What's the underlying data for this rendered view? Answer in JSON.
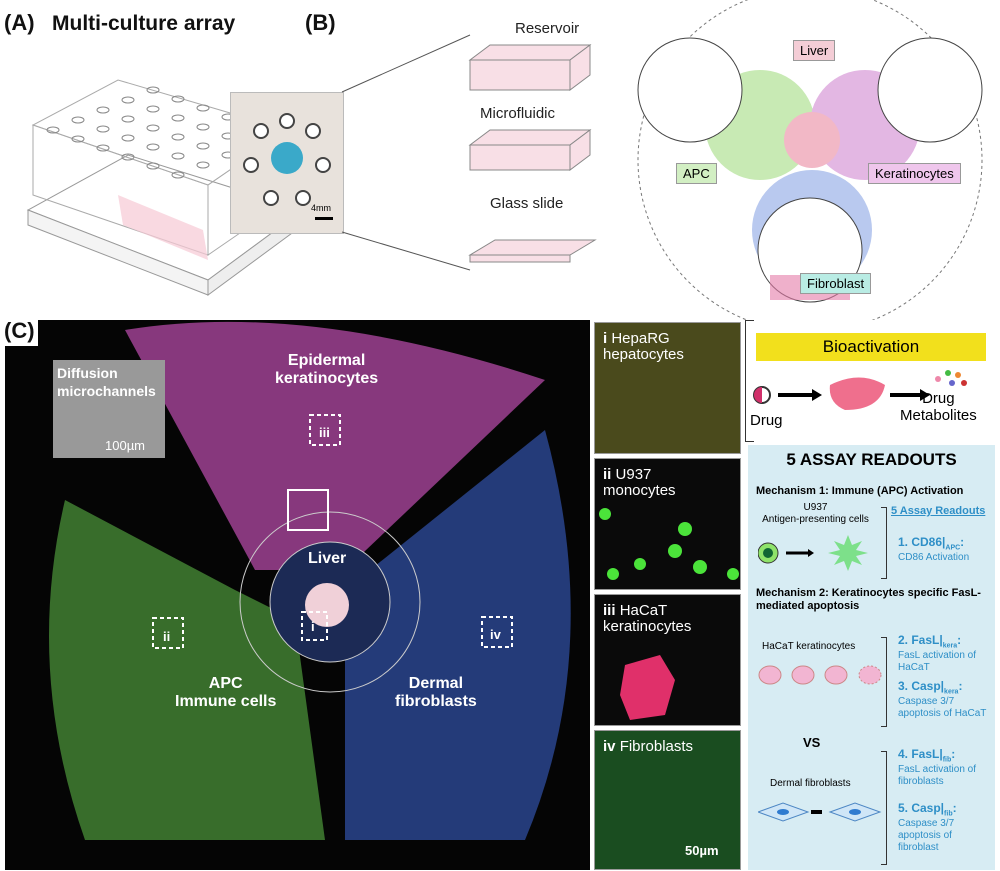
{
  "panelA": {
    "label": "(A)",
    "title": "Multi-culture array"
  },
  "panelB": {
    "label": "(B)",
    "scale": "4mm",
    "layers": [
      "Reservoir",
      "Microfluidic",
      "Glass slide"
    ],
    "tissues": {
      "liver": "Liver",
      "apc": "APC",
      "keratinocytes": "Keratinocytes",
      "fibroblast": "Fibroblast"
    }
  },
  "panelC": {
    "label": "(C)",
    "micrograph": {
      "inset_title": "Diffusion\nmicrochannels",
      "inset_scale": "100µm",
      "epidermal": "Epidermal\nkeratinocytes",
      "liver": "Liver",
      "apc": "APC\nImmune cells",
      "dermal": "Dermal\nfibroblasts",
      "markers": [
        "i",
        "ii",
        "iii",
        "iv"
      ]
    },
    "insets": [
      {
        "num": "i",
        "text": "HepaRG\nhepatocytes"
      },
      {
        "num": "ii",
        "text": "U937\nmonocytes"
      },
      {
        "num": "iii",
        "text": "HaCaT\nkeratinocytes"
      },
      {
        "num": "iv",
        "text": "Fibroblasts",
        "scale": "50µm"
      }
    ]
  },
  "bioactivation": {
    "title": "Bioactivation",
    "drug": "Drug",
    "metabolites": "Drug\nMetabolites"
  },
  "readouts": {
    "title": "5 ASSAY READOUTS",
    "mech1": "Mechanism 1: Immune (APC) Activation",
    "u937": "U937\nAntigen-presenting cells",
    "link": "5 Assay Readouts",
    "mech2": "Mechanism 2: Keratinocytes specific FasL-mediated apoptosis",
    "hacat": "HaCaT keratinocytes",
    "vs": "VS",
    "dermal": "Dermal fibroblasts",
    "items": [
      {
        "name": "1. CD86|",
        "sub": "APC",
        "desc": "CD86 Activation"
      },
      {
        "name": "2. FasL|",
        "sub": "kera",
        "desc": "FasL activation of HaCaT"
      },
      {
        "name": "3. Casp|",
        "sub": "kera",
        "desc": "Caspase 3/7 apoptosis of HaCaT"
      },
      {
        "name": "4. FasL|",
        "sub": "fib",
        "desc": "FasL activation of fibroblasts"
      },
      {
        "name": "5. Casp|",
        "sub": "fib",
        "desc": "Caspase 3/7 apoptosis of fibroblast"
      }
    ]
  },
  "colors": {
    "apc": "#8fd16a",
    "kera": "#e69ad8",
    "liver": "#f2b8c6",
    "fib": "#9db6e6",
    "yellow": "#f2e01c",
    "box": "#d7ecf3",
    "link": "#2e8fc7"
  }
}
